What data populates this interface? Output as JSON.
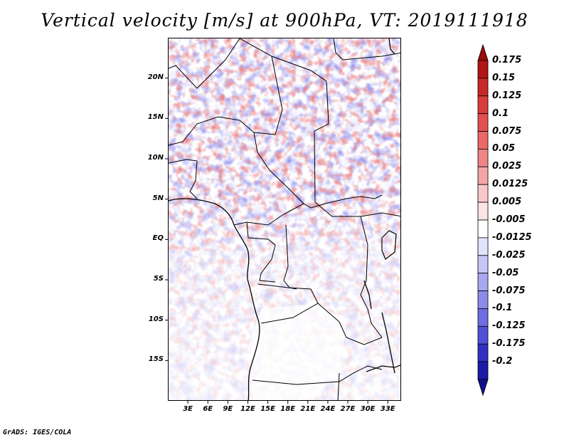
{
  "title": "Vertical velocity [m/s] at 900hPa, VT: 2019111918",
  "credit": "GrADS: IGES/COLA",
  "map": {
    "lat_range": [
      -20,
      25
    ],
    "lon_range": [
      0,
      35
    ],
    "lat_ticks": [
      {
        "value": 20,
        "label": "20N"
      },
      {
        "value": 15,
        "label": "15N"
      },
      {
        "value": 10,
        "label": "10N"
      },
      {
        "value": 5,
        "label": "5N"
      },
      {
        "value": 0,
        "label": "EQ"
      },
      {
        "value": -5,
        "label": "5S"
      },
      {
        "value": -10,
        "label": "10S"
      },
      {
        "value": -15,
        "label": "15S"
      }
    ],
    "lon_ticks": [
      {
        "value": 3,
        "label": "3E"
      },
      {
        "value": 6,
        "label": "6E"
      },
      {
        "value": 9,
        "label": "9E"
      },
      {
        "value": 12,
        "label": "12E"
      },
      {
        "value": 15,
        "label": "15E"
      },
      {
        "value": 18,
        "label": "18E"
      },
      {
        "value": 21,
        "label": "21E"
      },
      {
        "value": 24,
        "label": "24E"
      },
      {
        "value": 27,
        "label": "27E"
      },
      {
        "value": 30,
        "label": "30E"
      },
      {
        "value": 33,
        "label": "33E"
      }
    ]
  },
  "colorbar": {
    "levels": [
      {
        "label": "0.175",
        "color": "#b01414"
      },
      {
        "label": "0.15",
        "color": "#c82828"
      },
      {
        "label": "0.125",
        "color": "#d83c3c"
      },
      {
        "label": "0.1",
        "color": "#e45050"
      },
      {
        "label": "0.075",
        "color": "#ea6868"
      },
      {
        "label": "0.05",
        "color": "#ef8585"
      },
      {
        "label": "0.025",
        "color": "#f4a5a5"
      },
      {
        "label": "0.0125",
        "color": "#f8c8c8"
      },
      {
        "label": "0.005",
        "color": "#fce4e4"
      },
      {
        "label": "-0.005",
        "color": "#ffffff"
      },
      {
        "label": "-0.0125",
        "color": "#e2e2fc"
      },
      {
        "label": "-0.025",
        "color": "#c6c6f6"
      },
      {
        "label": "-0.05",
        "color": "#a8a8f0"
      },
      {
        "label": "-0.075",
        "color": "#8c8ce8"
      },
      {
        "label": "-0.1",
        "color": "#6e6ee0"
      },
      {
        "label": "-0.125",
        "color": "#5050d6"
      },
      {
        "label": "-0.175",
        "color": "#3030c4"
      },
      {
        "label": "-0.2",
        "color": "#1a1aa8"
      }
    ],
    "top_color": "#9a0c0c",
    "bottom_color": "#10108a"
  }
}
